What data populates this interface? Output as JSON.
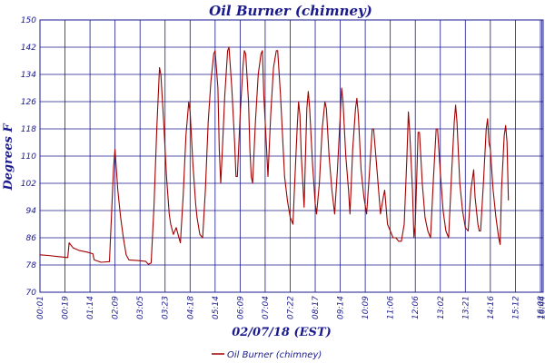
{
  "colors": {
    "axis": "#1a1a8c",
    "grid": "#1a1a8c",
    "series": "#a00000",
    "background": "#ffffff"
  },
  "chart_data": {
    "type": "line",
    "title": "Oil Burner (chimney)",
    "xlabel": "02/07/18 (EST)",
    "ylabel": "Degrees F",
    "ylim": [
      70,
      150
    ],
    "yticks": [
      70,
      78,
      86,
      94,
      102,
      110,
      118,
      126,
      134,
      142,
      150
    ],
    "xlim": [
      1,
      1640
    ],
    "xticks": [
      {
        "value": 1,
        "label": "00:01"
      },
      {
        "value": 19,
        "label": "00:19"
      },
      {
        "value": 37,
        "label": "01:14"
      },
      {
        "value": 55,
        "label": "02:09"
      },
      {
        "value": 73,
        "label": "03:05"
      },
      {
        "value": 91,
        "label": "03:23"
      },
      {
        "value": 109,
        "label": "04:18"
      },
      {
        "value": 127,
        "label": "05:14"
      },
      {
        "value": 145,
        "label": "06:09"
      },
      {
        "value": 163,
        "label": "07:04"
      },
      {
        "value": 181,
        "label": "07:22"
      },
      {
        "value": 199,
        "label": "08:17"
      },
      {
        "value": 217,
        "label": "09:14"
      },
      {
        "value": 235,
        "label": "10:09"
      },
      {
        "value": 253,
        "label": "11:06"
      },
      {
        "value": 271,
        "label": "12:06"
      },
      {
        "value": 289,
        "label": "13:02"
      },
      {
        "value": 307,
        "label": "13:21"
      },
      {
        "value": 325,
        "label": "14:16"
      },
      {
        "value": 343,
        "label": "15:12"
      },
      {
        "value": 361,
        "label": "16:08"
      },
      {
        "value": 362,
        "label": "16:44"
      }
    ],
    "grid": true,
    "legend_position": "bottom-left",
    "series": [
      {
        "name": "Oil Burner (chimney)",
        "color": "#a00000",
        "points": [
          [
            0,
            81
          ],
          [
            6,
            80.8
          ],
          [
            12,
            80.5
          ],
          [
            20,
            80.2
          ],
          [
            21,
            84.5
          ],
          [
            24,
            83
          ],
          [
            28,
            82.3
          ],
          [
            34,
            81.8
          ],
          [
            38,
            81.3
          ],
          [
            39,
            79.5
          ],
          [
            44,
            78.8
          ],
          [
            50,
            79
          ],
          [
            53,
            107
          ],
          [
            54,
            112
          ],
          [
            56,
            100
          ],
          [
            58,
            92
          ],
          [
            60,
            86
          ],
          [
            62,
            81
          ],
          [
            64,
            79.5
          ],
          [
            70,
            79.3
          ],
          [
            76,
            79.1
          ],
          [
            78,
            78.2
          ],
          [
            80,
            78.6
          ],
          [
            82,
            95
          ],
          [
            84,
            118
          ],
          [
            86,
            136
          ],
          [
            87,
            134
          ],
          [
            89,
            120
          ],
          [
            91,
            104
          ],
          [
            93,
            93
          ],
          [
            94,
            90
          ],
          [
            96,
            87
          ],
          [
            98,
            89
          ],
          [
            100,
            86
          ],
          [
            101,
            84.5
          ],
          [
            103,
            98
          ],
          [
            105,
            116
          ],
          [
            107,
            126
          ],
          [
            108,
            123
          ],
          [
            110,
            108
          ],
          [
            112,
            96
          ],
          [
            113,
            92
          ],
          [
            115,
            87
          ],
          [
            117,
            86
          ],
          [
            119,
            100
          ],
          [
            121,
            120
          ],
          [
            123,
            132
          ],
          [
            125,
            140
          ],
          [
            126,
            141
          ],
          [
            128,
            130
          ],
          [
            129,
            112
          ],
          [
            130,
            102
          ],
          [
            131,
            110
          ],
          [
            133,
            128
          ],
          [
            135,
            141
          ],
          [
            136,
            142
          ],
          [
            138,
            130
          ],
          [
            140,
            114
          ],
          [
            141,
            104
          ],
          [
            142,
            104
          ],
          [
            144,
            122
          ],
          [
            146,
            136
          ],
          [
            147,
            141
          ],
          [
            148,
            140
          ],
          [
            150,
            126
          ],
          [
            151,
            112
          ],
          [
            152,
            104
          ],
          [
            153,
            102
          ],
          [
            155,
            120
          ],
          [
            157,
            134
          ],
          [
            159,
            140
          ],
          [
            160,
            141
          ],
          [
            161,
            128
          ],
          [
            163,
            112
          ],
          [
            164,
            104
          ],
          [
            166,
            122
          ],
          [
            168,
            136
          ],
          [
            170,
            141
          ],
          [
            171,
            141
          ],
          [
            173,
            128
          ],
          [
            175,
            112
          ],
          [
            176,
            104
          ],
          [
            178,
            97
          ],
          [
            180,
            92
          ],
          [
            182,
            90
          ],
          [
            183,
            100
          ],
          [
            185,
            118
          ],
          [
            186,
            126
          ],
          [
            187,
            122
          ],
          [
            188,
            110
          ],
          [
            189,
            103
          ],
          [
            190,
            95
          ],
          [
            191,
            110
          ],
          [
            192,
            124
          ],
          [
            193,
            129
          ],
          [
            194,
            124
          ],
          [
            196,
            108
          ],
          [
            198,
            96
          ],
          [
            199,
            93
          ],
          [
            201,
            102
          ],
          [
            203,
            118
          ],
          [
            205,
            126
          ],
          [
            206,
            124
          ],
          [
            208,
            110
          ],
          [
            210,
            100
          ],
          [
            212,
            93
          ],
          [
            214,
            106
          ],
          [
            216,
            122
          ],
          [
            217,
            130
          ],
          [
            218,
            126
          ],
          [
            220,
            110
          ],
          [
            222,
            100
          ],
          [
            223,
            93
          ],
          [
            225,
            112
          ],
          [
            227,
            124
          ],
          [
            228,
            127
          ],
          [
            229,
            122
          ],
          [
            231,
            106
          ],
          [
            233,
            98
          ],
          [
            235,
            93
          ],
          [
            237,
            105
          ],
          [
            239,
            118
          ],
          [
            240,
            118
          ],
          [
            242,
            108
          ],
          [
            244,
            98
          ],
          [
            245,
            93
          ],
          [
            247,
            98
          ],
          [
            248,
            100
          ],
          [
            250,
            90
          ],
          [
            252,
            88
          ],
          [
            254,
            86
          ],
          [
            256,
            86
          ],
          [
            258,
            85
          ],
          [
            260,
            85
          ],
          [
            262,
            90
          ],
          [
            264,
            110
          ],
          [
            265,
            123
          ],
          [
            266,
            117
          ],
          [
            268,
            100
          ],
          [
            269,
            86
          ],
          [
            270,
            90
          ],
          [
            272,
            117
          ],
          [
            273,
            117
          ],
          [
            275,
            102
          ],
          [
            277,
            92
          ],
          [
            279,
            88
          ],
          [
            281,
            86
          ],
          [
            283,
            103
          ],
          [
            285,
            118
          ],
          [
            286,
            118
          ],
          [
            288,
            105
          ],
          [
            290,
            94
          ],
          [
            292,
            88
          ],
          [
            294,
            86
          ],
          [
            296,
            104
          ],
          [
            298,
            120
          ],
          [
            299,
            125
          ],
          [
            300,
            120
          ],
          [
            302,
            102
          ],
          [
            304,
            94
          ],
          [
            306,
            89
          ],
          [
            308,
            88
          ],
          [
            310,
            100
          ],
          [
            312,
            106
          ],
          [
            313,
            98
          ],
          [
            315,
            90
          ],
          [
            316,
            88
          ],
          [
            317,
            88
          ],
          [
            319,
            102
          ],
          [
            321,
            118
          ],
          [
            322,
            121
          ],
          [
            323,
            114
          ],
          [
            324,
            112
          ],
          [
            326,
            100
          ],
          [
            328,
            92
          ],
          [
            330,
            86
          ],
          [
            331,
            84
          ],
          [
            332,
            100
          ],
          [
            334,
            116
          ],
          [
            335,
            119
          ],
          [
            336,
            114
          ],
          [
            337,
            97
          ]
        ]
      }
    ]
  }
}
